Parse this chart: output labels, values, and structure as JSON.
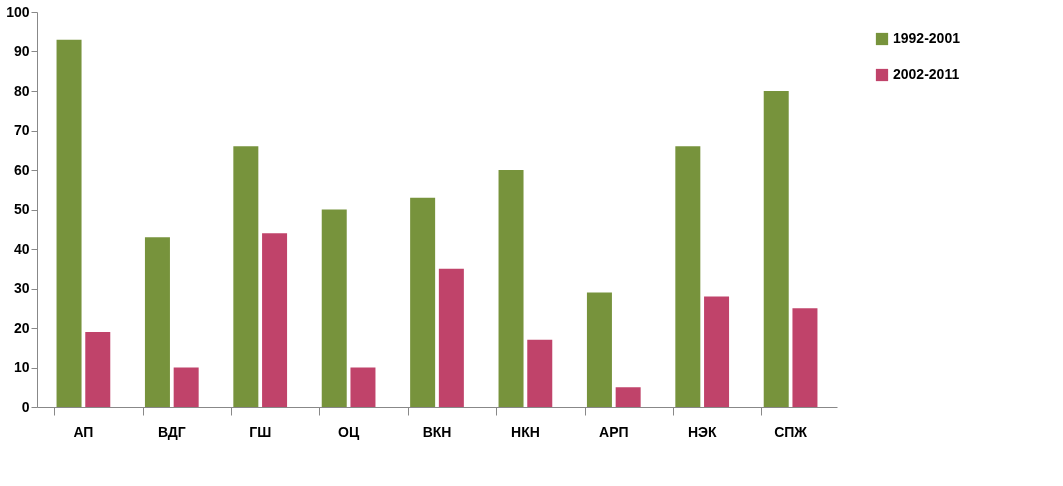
{
  "chart_data": {
    "type": "bar",
    "categories": [
      "АП",
      "ВДГ",
      "ГШ",
      "ОЦ",
      "ВКН",
      "НКН",
      "АРП",
      "НЭК",
      "СПЖ"
    ],
    "series": [
      {
        "name": "1992-2001",
        "color": "#77933c",
        "values": [
          93,
          43,
          66,
          50,
          53,
          60,
          29,
          66,
          80
        ]
      },
      {
        "name": "2002-2011",
        "color": "#c0436a",
        "values": [
          19,
          10,
          44,
          10,
          35,
          17,
          5,
          28,
          25
        ]
      }
    ],
    "ylim": [
      0,
      100
    ],
    "yticks": [
      0,
      10,
      20,
      30,
      40,
      50,
      60,
      70,
      80,
      90,
      100
    ],
    "grid": false,
    "legend": "right"
  }
}
